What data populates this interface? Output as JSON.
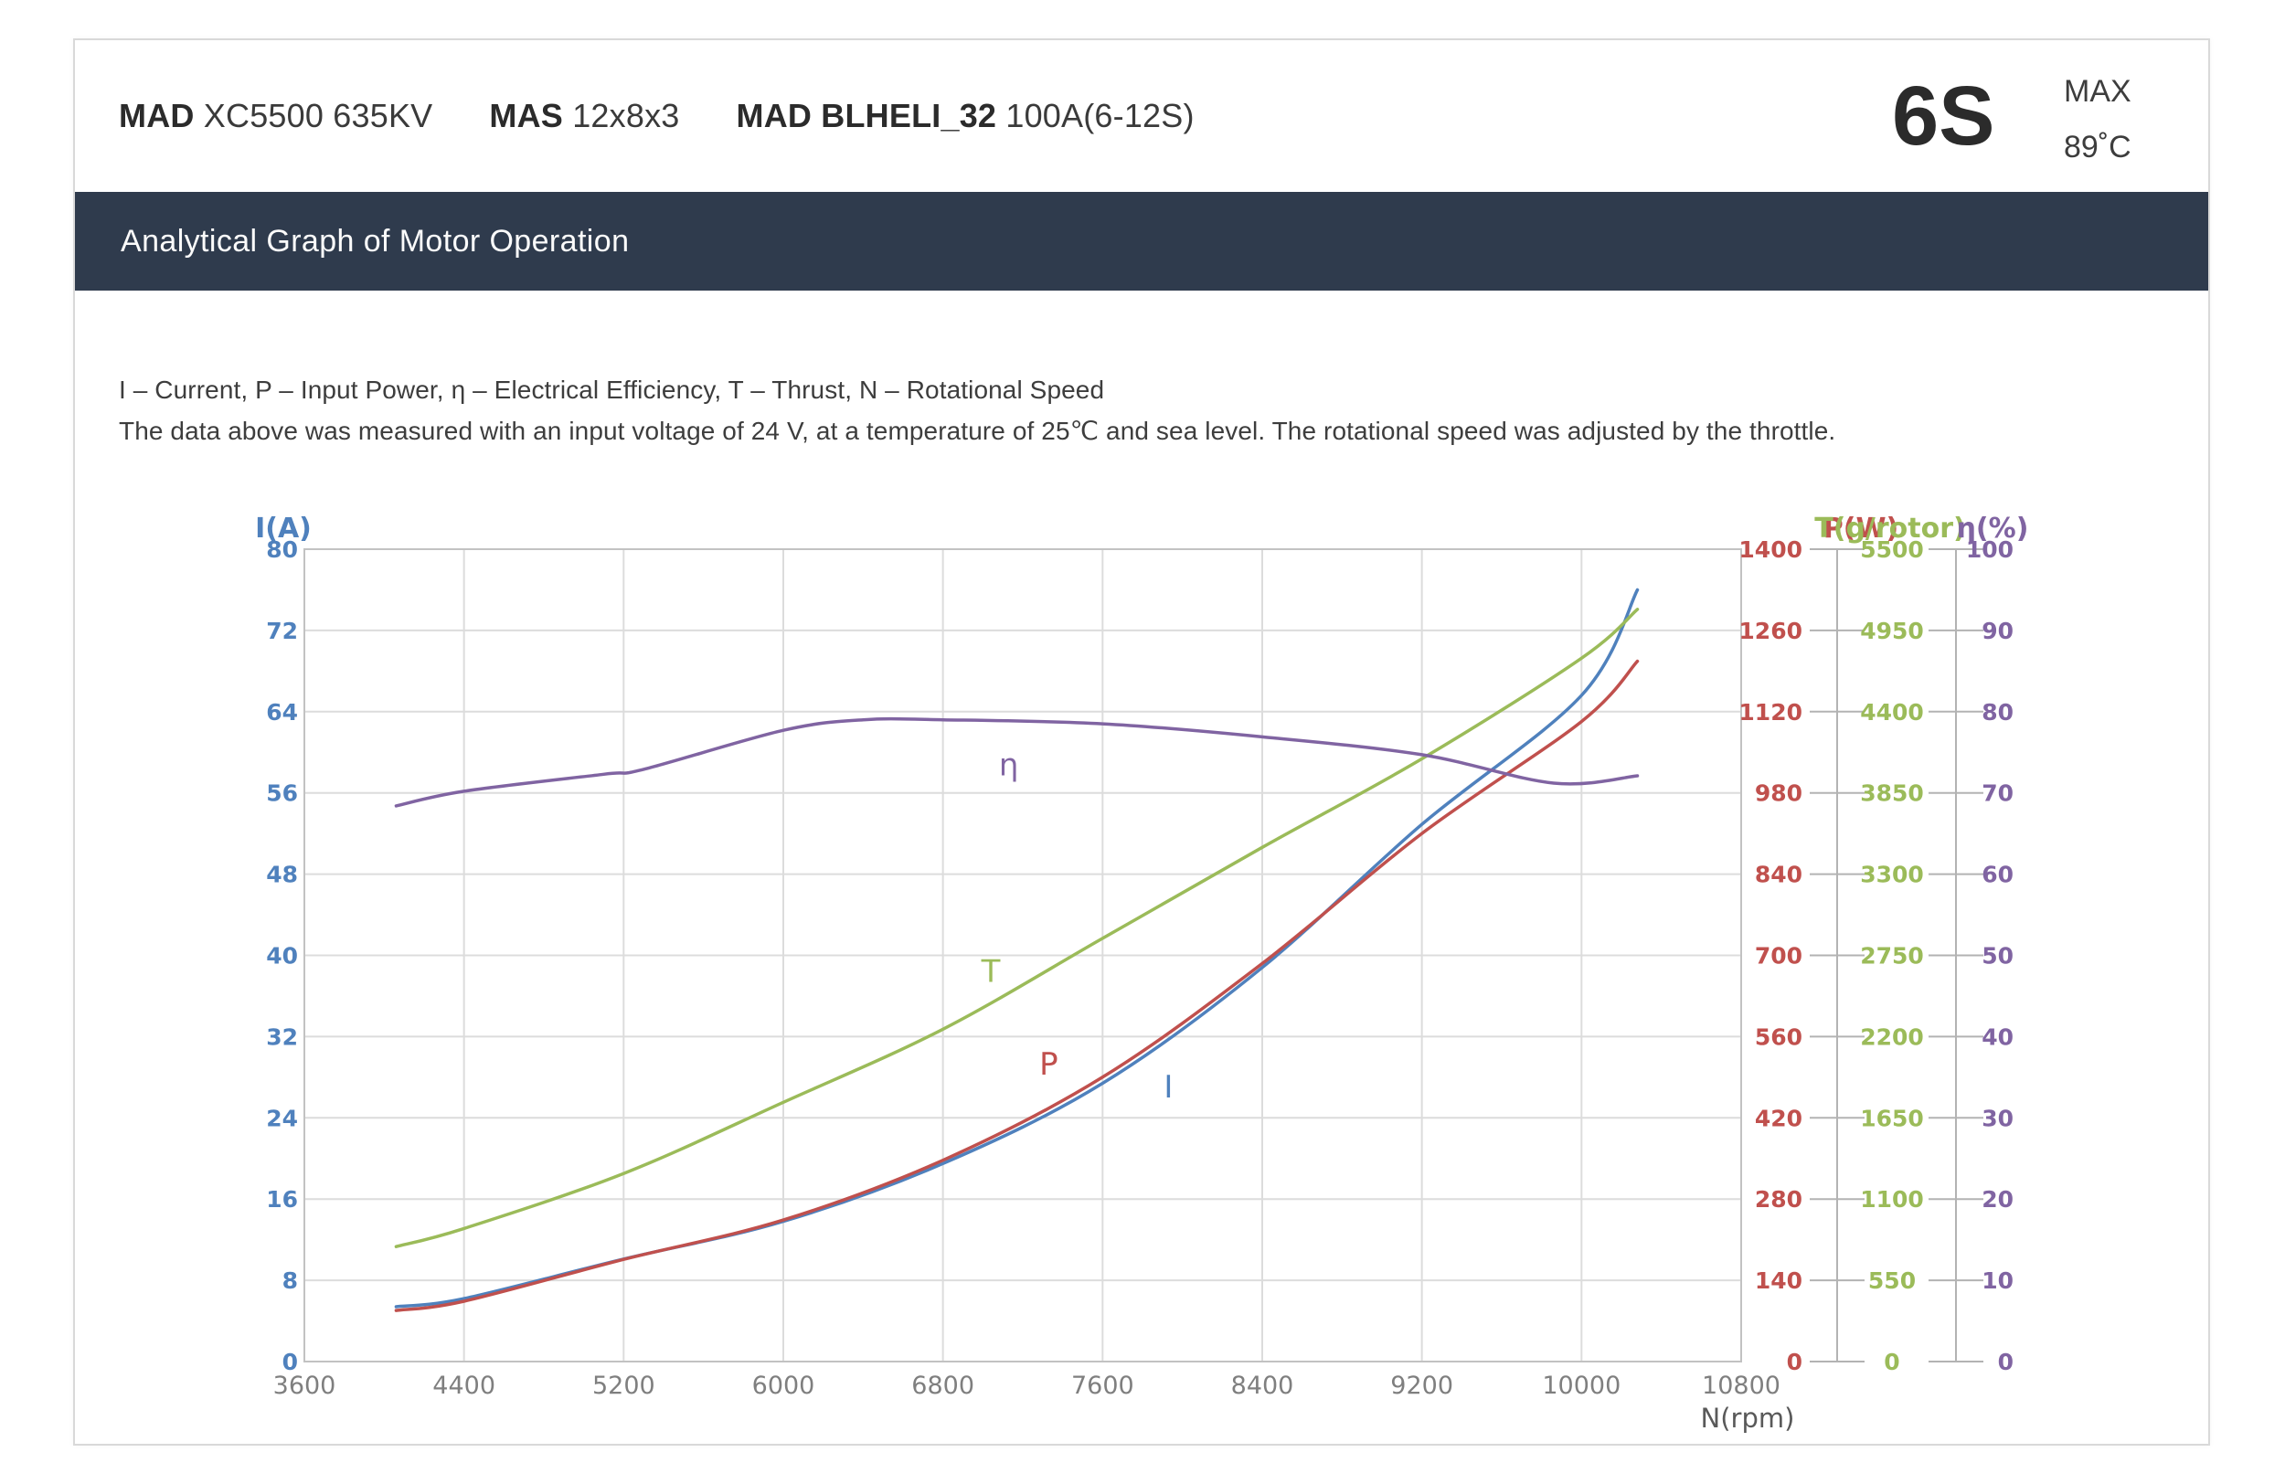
{
  "header": {
    "motor_bold": "MAD",
    "motor_rest": " XC5500 635KV",
    "prop_bold": "MAS",
    "prop_rest": " 12x8x3",
    "esc_bold": "MAD BLHELI_32",
    "esc_rest": " 100A(6-12S)",
    "battery": "6S",
    "max_label": "MAX",
    "max_temp": "89˚C"
  },
  "banner": {
    "title": "Analytical Graph of Motor Operation",
    "bg_color": "#2f3b4d"
  },
  "description": {
    "line1": "I – Current, P – Input Power, η – Electrical Efficiency, T – Thrust,   N – Rotational Speed",
    "line2": "The data above was measured with an input voltage of 24 V, at a temperature of 25℃ and sea level. The rotational speed was adjusted by the throttle."
  },
  "chart_data": {
    "type": "line",
    "title": "Analytical Graph of Motor Operation",
    "grid": true,
    "legend_position": "inline-curve-labels",
    "grid_color": "#dcdcdc",
    "border_color": "#c2c2c2",
    "scale_line_color": "#b3b3b3",
    "x_axis": {
      "label": "N(rpm)",
      "min": 3600,
      "max": 10800,
      "step": 800,
      "tick_color": "#7f7f7f",
      "label_color": "#595959",
      "ticks": [
        3600,
        4400,
        5200,
        6000,
        6800,
        7600,
        8400,
        9200,
        10000,
        10800
      ]
    },
    "axes": [
      {
        "id": "I",
        "title": "I(A)",
        "min": 0,
        "max": 80,
        "step": 8,
        "color": "#4f81bd",
        "side": "left"
      },
      {
        "id": "P",
        "title": "P(W)",
        "min": 0,
        "max": 1400,
        "step": 140,
        "color": "#c0504d",
        "side": "right"
      },
      {
        "id": "T",
        "title": "T(g/rotor)",
        "min": 0,
        "max": 5500,
        "step": 550,
        "color": "#9bbb59",
        "side": "right"
      },
      {
        "id": "eta",
        "title": "η(%)",
        "min": 0,
        "max": 100,
        "step": 10,
        "color": "#8064a2",
        "side": "right"
      }
    ],
    "series": [
      {
        "id": "I",
        "name": "Current",
        "label": "I",
        "axis": "I",
        "color": "#4f81bd",
        "points": [
          [
            4060,
            5.4
          ],
          [
            4400,
            6.2
          ],
          [
            5200,
            10.1
          ],
          [
            6000,
            13.8
          ],
          [
            6800,
            19.5
          ],
          [
            7600,
            27.4
          ],
          [
            8400,
            38.8
          ],
          [
            9200,
            52.9
          ],
          [
            10000,
            65.6
          ],
          [
            10280,
            76.0
          ]
        ]
      },
      {
        "id": "P",
        "name": "Input Power",
        "label": "P",
        "axis": "P",
        "color": "#c0504d",
        "points": [
          [
            4060,
            88
          ],
          [
            4400,
            104
          ],
          [
            5200,
            176
          ],
          [
            6000,
            244
          ],
          [
            6800,
            347
          ],
          [
            7600,
            490
          ],
          [
            8400,
            686
          ],
          [
            9200,
            910
          ],
          [
            10000,
            1103
          ],
          [
            10280,
            1207
          ]
        ]
      },
      {
        "id": "T",
        "name": "Thrust",
        "label": "T",
        "axis": "T",
        "color": "#9bbb59",
        "points": [
          [
            4060,
            778
          ],
          [
            4400,
            901
          ],
          [
            5200,
            1273
          ],
          [
            6000,
            1755
          ],
          [
            6800,
            2250
          ],
          [
            7600,
            2865
          ],
          [
            8400,
            3481
          ],
          [
            9200,
            4081
          ],
          [
            10000,
            4762
          ],
          [
            10280,
            5093
          ]
        ]
      },
      {
        "id": "eta",
        "name": "Electrical Efficiency",
        "label": "η",
        "axis": "eta",
        "color": "#8064a2",
        "points": [
          [
            4060,
            68.4
          ],
          [
            4400,
            70.2
          ],
          [
            5100,
            72.3
          ],
          [
            5300,
            72.9
          ],
          [
            6000,
            77.7
          ],
          [
            6400,
            79.0
          ],
          [
            6800,
            79.0
          ],
          [
            7600,
            78.5
          ],
          [
            8400,
            76.9
          ],
          [
            9200,
            74.7
          ],
          [
            9860,
            71.2
          ],
          [
            10280,
            72.1
          ]
        ]
      }
    ],
    "curve_labels": [
      {
        "text": "η",
        "axis": "eta",
        "n": 7130,
        "value": 73.4,
        "color": "#8064a2"
      },
      {
        "text": "T",
        "axis": "T",
        "n": 7040,
        "value": 2640,
        "color": "#9bbb59"
      },
      {
        "text": "P",
        "axis": "P",
        "n": 7330,
        "value": 512,
        "color": "#c0504d"
      },
      {
        "text": "I",
        "axis": "I",
        "n": 7930,
        "value": 27.0,
        "color": "#4f81bd"
      }
    ]
  }
}
